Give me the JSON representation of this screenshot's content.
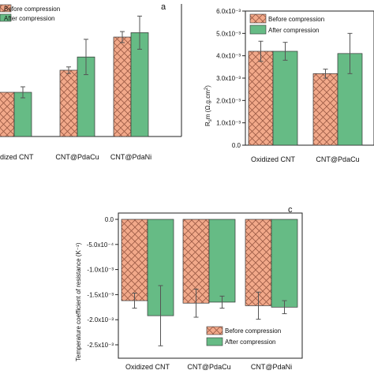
{
  "legend": {
    "before_label": "Before compression",
    "after_label": "After compression"
  },
  "colors": {
    "before": "#f2a98a",
    "hatch": "#9b5a44",
    "after": "#66bb85",
    "axis": "#222222"
  },
  "chart_data": [
    {
      "type": "bar",
      "panel_label": "a",
      "categories": [
        "Oxidized CNT",
        "CNT@PdaCu",
        "CNT@PdaNi"
      ],
      "category_labels_visible": [
        "xidized CNT",
        "CNT@PdaCu",
        "CNT@PdaNi"
      ],
      "ylim": [
        0,
        6.0
      ],
      "series": [
        {
          "name": "Before compression",
          "values": [
            2.0,
            3.0,
            4.5
          ],
          "errors": [
            0.0,
            0.15,
            0.25
          ]
        },
        {
          "name": "After compression",
          "values": [
            2.0,
            3.6,
            4.7
          ],
          "errors": [
            0.25,
            0.8,
            0.75
          ]
        }
      ]
    },
    {
      "type": "bar",
      "panel_label": "",
      "categories": [
        "Oxidized CNT",
        "CNT@PdaCu"
      ],
      "ylabel": "R_s·m (Ω.g.cm²)",
      "ylim": [
        0,
        0.006
      ],
      "yticks": [
        "0.0",
        "1.0x10⁻³",
        "2.0x10⁻³",
        "3.0x10⁻³",
        "4.0x10⁻³",
        "5.0x10⁻³",
        "6.0x10⁻³"
      ],
      "series": [
        {
          "name": "Before compression",
          "values": [
            0.0042,
            0.0032
          ],
          "errors": [
            0.00045,
            0.0002
          ]
        },
        {
          "name": "After compression",
          "values": [
            0.0042,
            0.0041
          ],
          "errors": [
            0.0004,
            0.0009
          ]
        }
      ]
    },
    {
      "type": "bar",
      "panel_label": "c",
      "categories": [
        "Oxidized CNT",
        "CNT@PdaCu",
        "CNT@PdaNi"
      ],
      "ylabel": "Temperature coefficient of resistance (K⁻¹)",
      "ylim": [
        -0.0026,
        0
      ],
      "yticks": [
        "0.0",
        "-5.0x10⁻⁴",
        "-1.0x10⁻³",
        "-1.5x10⁻³",
        "-2.0x10⁻³",
        "-2.5x10⁻³"
      ],
      "series": [
        {
          "name": "Before compression",
          "values": [
            -0.00162,
            -0.00167,
            -0.00172
          ],
          "errors": [
            0.00015,
            0.00028,
            0.00027
          ]
        },
        {
          "name": "After compression",
          "values": [
            -0.00192,
            -0.00165,
            -0.00175
          ],
          "errors": [
            0.0006,
            0.00012,
            0.00013
          ]
        }
      ]
    }
  ]
}
